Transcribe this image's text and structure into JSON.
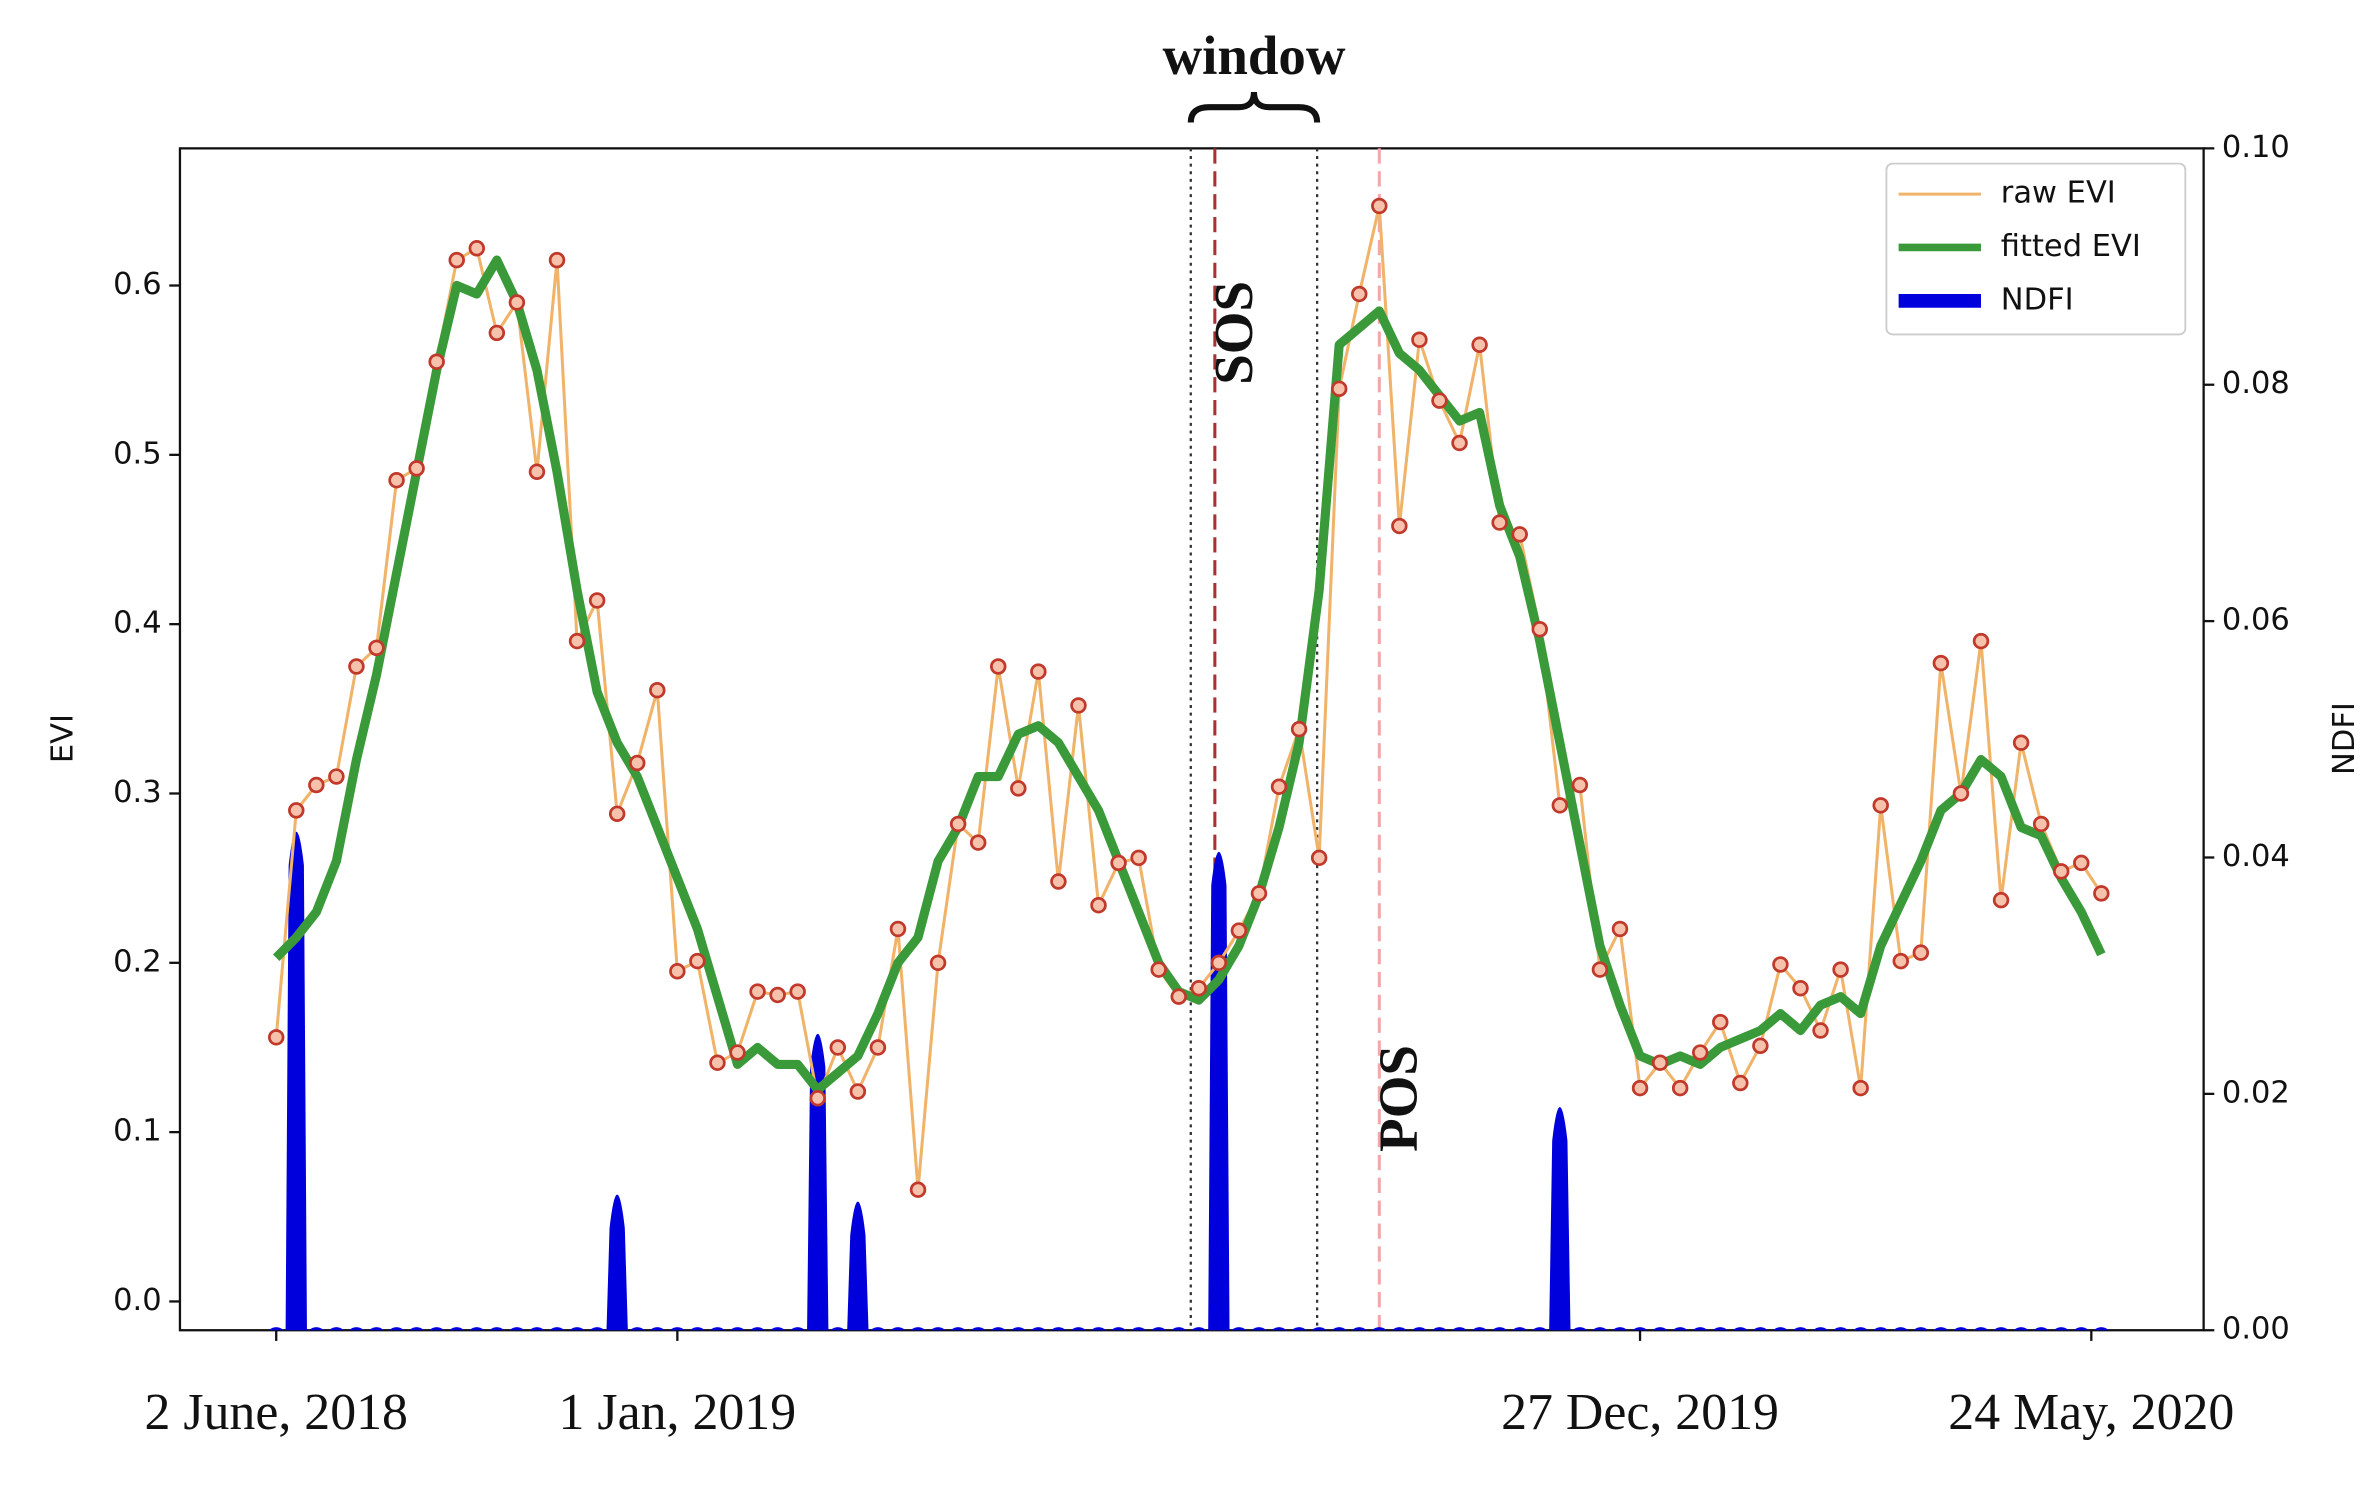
{
  "chart_data": {
    "type": "line",
    "x": [
      0,
      1,
      2,
      3,
      4,
      5,
      6,
      7,
      8,
      9,
      10,
      11,
      12,
      13,
      14,
      15,
      16,
      17,
      18,
      19,
      20,
      21,
      22,
      23,
      24,
      25,
      26,
      27,
      28,
      29,
      30,
      31,
      32,
      33,
      34,
      35,
      36,
      37,
      38,
      39,
      40,
      41,
      42,
      43,
      44,
      45,
      46,
      47,
      48,
      49,
      50,
      51,
      52,
      53,
      54,
      55,
      56,
      57,
      58,
      59,
      60,
      61,
      62,
      63,
      64,
      65,
      66,
      67,
      68,
      69,
      70,
      71,
      72,
      73,
      74,
      75,
      76,
      77,
      78,
      79,
      80,
      81,
      82,
      83,
      84,
      85,
      86,
      87,
      88,
      89,
      90,
      91
    ],
    "series": [
      {
        "name": "raw EVI",
        "color": "#f0b36a",
        "marker_color": "#c0392b",
        "marker_fill": "#f6c2ac",
        "values": [
          0.156,
          0.29,
          0.305,
          0.31,
          0.375,
          0.386,
          0.485,
          0.492,
          0.555,
          0.615,
          0.622,
          0.572,
          0.59,
          0.49,
          0.615,
          0.39,
          0.414,
          0.288,
          0.318,
          0.361,
          0.195,
          0.201,
          0.141,
          0.147,
          0.183,
          0.181,
          0.183,
          0.12,
          0.15,
          0.124,
          0.15,
          0.22,
          0.066,
          0.2,
          0.282,
          0.271,
          0.375,
          0.303,
          0.372,
          0.248,
          0.352,
          0.234,
          0.259,
          0.262,
          0.196,
          0.18,
          0.185,
          0.2,
          0.219,
          0.241,
          0.304,
          0.338,
          0.262,
          0.539,
          0.595,
          0.647,
          0.458,
          0.568,
          0.532,
          0.507,
          0.565,
          0.46,
          0.453,
          0.397,
          0.293,
          0.305,
          0.196,
          0.22,
          0.126,
          0.141,
          0.126,
          0.147,
          0.165,
          0.129,
          0.151,
          0.199,
          0.185,
          0.16,
          0.196,
          0.126,
          0.293,
          0.201,
          0.206,
          0.377,
          0.3,
          0.39,
          0.237,
          0.33,
          0.282,
          0.254,
          0.259,
          0.241
        ]
      },
      {
        "name": "fitted EVI",
        "color": "#3a9a3a",
        "values": [
          0.203,
          0.215,
          0.23,
          0.26,
          0.32,
          0.37,
          0.43,
          0.49,
          0.55,
          0.6,
          0.595,
          0.615,
          0.59,
          0.55,
          0.49,
          0.42,
          0.36,
          0.33,
          0.31,
          0.28,
          0.25,
          0.22,
          0.18,
          0.14,
          0.15,
          0.14,
          0.14,
          0.125,
          0.135,
          0.145,
          0.17,
          0.2,
          0.215,
          0.26,
          0.28,
          0.31,
          0.31,
          0.335,
          0.34,
          0.33,
          0.31,
          0.29,
          0.26,
          0.23,
          0.2,
          0.183,
          0.178,
          0.19,
          0.21,
          0.24,
          0.28,
          0.33,
          0.42,
          0.565,
          0.575,
          0.585,
          0.56,
          0.55,
          0.535,
          0.52,
          0.525,
          0.47,
          0.44,
          0.39,
          0.33,
          0.27,
          0.21,
          0.175,
          0.145,
          0.14,
          0.145,
          0.14,
          0.15,
          0.155,
          0.16,
          0.17,
          0.16,
          0.175,
          0.18,
          0.17,
          0.21,
          0.235,
          0.26,
          0.29,
          0.3,
          0.32,
          0.31,
          0.28,
          0.275,
          0.25,
          0.23,
          0.205
        ]
      },
      {
        "name": "NDFI",
        "color": "#0000dd",
        "axis": "y2",
        "values": [
          0,
          0.0445,
          0,
          0,
          0,
          0,
          0,
          0,
          0,
          0,
          0,
          0,
          0,
          0,
          0,
          0,
          0,
          0.0138,
          0,
          0,
          0,
          0,
          0,
          0,
          0,
          0,
          0,
          0.0274,
          0,
          0.0132,
          0,
          0,
          0,
          0,
          0,
          0,
          0,
          0,
          0,
          0,
          0,
          0,
          0,
          0,
          0,
          0,
          0,
          0.0428,
          0,
          0,
          0,
          0,
          0,
          0,
          0,
          0,
          0,
          0,
          0,
          0,
          0,
          0,
          0,
          0,
          0.0212,
          0,
          0,
          0,
          0,
          0,
          0,
          0,
          0,
          0,
          0,
          0,
          0,
          0,
          0,
          0,
          0,
          0,
          0,
          0,
          0,
          0,
          0,
          0,
          0,
          0,
          0,
          0
        ]
      }
    ],
    "y_label": "EVI",
    "y2_label": "NDFI",
    "xlim": [
      -4.8,
      96.1
    ],
    "xticks": [
      {
        "value": 0,
        "label": "2 June, 2018"
      },
      {
        "value": 20,
        "label": "1 Jan, 2019"
      },
      {
        "value": 68,
        "label": "27 Dec, 2019"
      },
      {
        "value": 90.5,
        "label": "24 May, 2020"
      }
    ],
    "ylim": [
      -0.017,
      0.681
    ],
    "yticks": [
      {
        "value": 0,
        "label": "0.0"
      },
      0.1,
      0.2,
      0.3,
      0.4,
      0.5,
      0.6
    ],
    "y2lim": [
      0,
      0.1
    ],
    "y2ticks": [
      {
        "value": 0,
        "label": "0.00"
      },
      {
        "value": 0.02,
        "label": "0.02"
      },
      {
        "value": 0.04,
        "label": "0.04"
      },
      {
        "value": 0.06,
        "label": "0.06"
      },
      {
        "value": 0.08,
        "label": "0.08"
      },
      {
        "value": 0.1,
        "label": "0.10"
      }
    ],
    "window": {
      "label": "window",
      "x": [
        45.6,
        51.9
      ],
      "color": "#333333"
    },
    "markers": [
      {
        "label": "SOS",
        "x": 46.8,
        "color": "#a83232"
      },
      {
        "label": "POS",
        "x": 55.0,
        "color": "#f2a8a8"
      }
    ],
    "legend": "upper right"
  }
}
